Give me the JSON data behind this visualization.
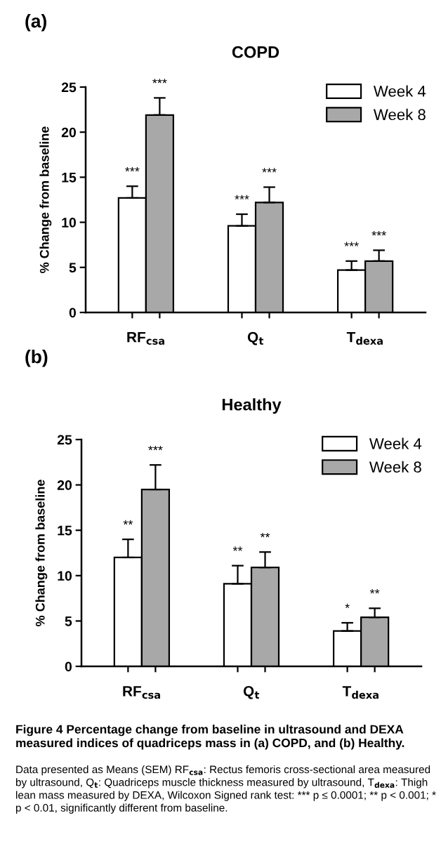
{
  "chart_data": [
    {
      "type": "bar",
      "title": "COPD",
      "ylabel": "% Change from baseline",
      "categories": [
        "RF$_{csa}$",
        "Q$_{t}$",
        "T$_{dexa}$"
      ],
      "series": [
        {
          "name": "Week 4",
          "color": "#ffffff",
          "values": [
            12.7,
            9.6,
            4.7
          ],
          "errors": [
            [
              12.7,
              14.0
            ],
            [
              9.6,
              10.9
            ],
            [
              4.7,
              5.7
            ]
          ],
          "value_labels": [
            "***",
            "***",
            "***"
          ]
        },
        {
          "name": "Week 8",
          "color": "#a8a8a8",
          "values": [
            21.9,
            12.2,
            5.7
          ],
          "errors": [
            [
              21.9,
              23.8
            ],
            [
              12.2,
              13.9
            ],
            [
              5.7,
              6.9
            ]
          ],
          "value_labels": [
            "***",
            "***",
            "***"
          ]
        }
      ],
      "ylim": [
        0,
        25
      ],
      "yticks": [
        0,
        5,
        10,
        15,
        20,
        25
      ],
      "legend": "top right",
      "grid": false,
      "annotations": [
        "(a)"
      ]
    },
    {
      "type": "bar",
      "title": "Healthy",
      "ylabel": "% Change from baseline",
      "categories": [
        "RF$_{csa}$",
        "Q$_{t}$",
        "T$_{dexa}$"
      ],
      "series": [
        {
          "name": "Week 4",
          "color": "#ffffff",
          "values": [
            12.0,
            9.1,
            3.9
          ],
          "errors": [
            [
              12.0,
              14.0
            ],
            [
              9.1,
              11.1
            ],
            [
              3.9,
              4.8
            ]
          ],
          "value_labels": [
            "**",
            "**",
            "*"
          ]
        },
        {
          "name": "Week 8",
          "color": "#a8a8a8",
          "values": [
            19.5,
            10.9,
            5.4
          ],
          "errors": [
            [
              19.5,
              22.2
            ],
            [
              10.9,
              12.6
            ],
            [
              5.4,
              6.4
            ]
          ],
          "value_labels": [
            "***",
            "**",
            "**"
          ]
        }
      ],
      "ylim": [
        0,
        25
      ],
      "yticks": [
        0,
        5,
        10,
        15,
        20,
        25
      ],
      "legend": "top right",
      "grid": false,
      "annotations": [
        "(b)",
        "Figure 4 Percentage change from baseline in ultrasound and DEXA measured indices of quadriceps mass in (a) COPD, and (b) Healthy.",
        "Data presented as Means (SEM) RF$_{csa}$: Rectus femoris cross-sectional area measured by ultrasound, Q$_{t}$: Quadriceps muscle thickness measured by ultrasound, T$_{dexa}$: Thigh lean mass measured by DEXA, Wilcoxon Signed rank test: *** p ≤ 0.0001; ** p < 0.001; * p < 0.01, significantly different from baseline."
      ]
    }
  ]
}
